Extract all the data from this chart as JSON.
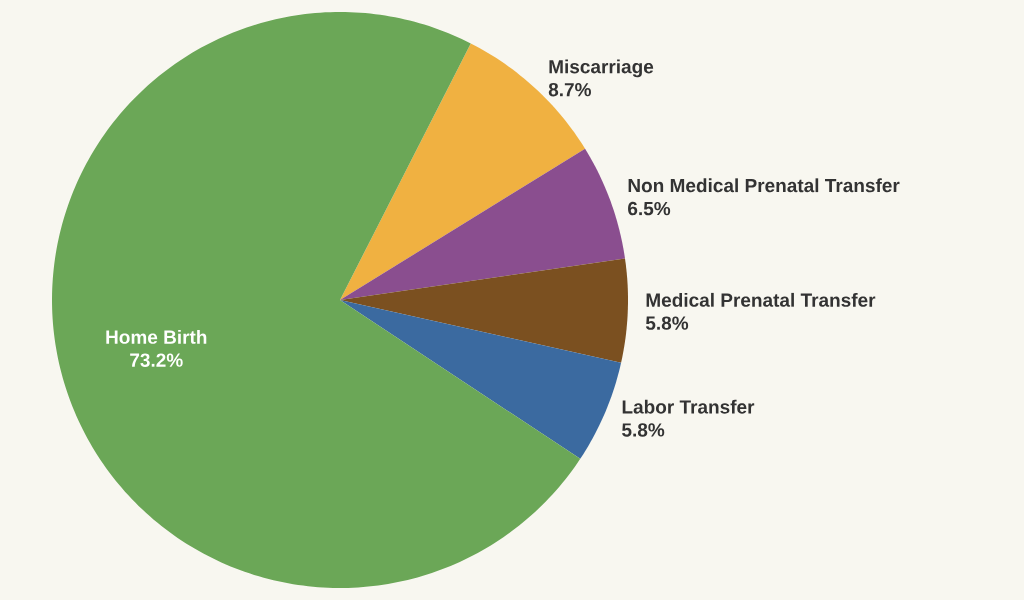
{
  "chart_data": {
    "type": "pie",
    "categories": [
      "Miscarriage",
      "Non Medical Prenatal Transfer",
      "Medical Prenatal Transfer",
      "Labor Transfer",
      "Home Birth"
    ],
    "values": [
      8.7,
      6.5,
      5.8,
      5.8,
      73.2
    ],
    "value_labels": [
      "8.7%",
      "6.5%",
      "5.8%",
      "5.8%",
      "73.2%"
    ],
    "colors": [
      "#f0b141",
      "#8a4e8f",
      "#7b5020",
      "#3b6aa0",
      "#6ba757"
    ]
  }
}
